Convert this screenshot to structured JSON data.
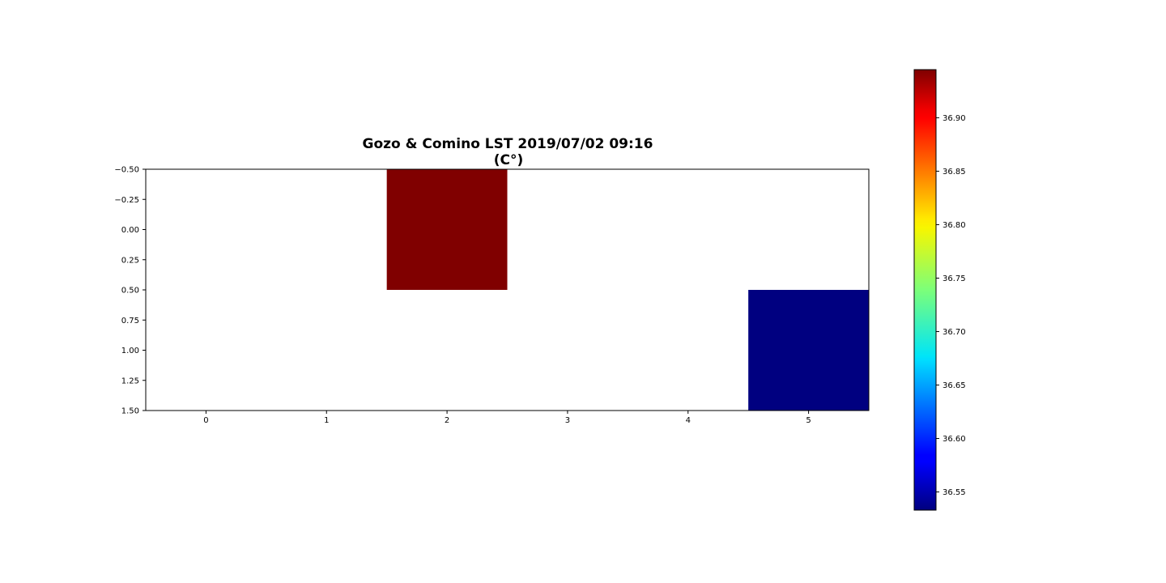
{
  "chart_data": {
    "type": "heatmap",
    "title": "Gozo & Comino LST 2019/07/02 09:16\n(C°)",
    "title_lines": [
      "Gozo & Comino LST 2019/07/02 09:16",
      "(C°)"
    ],
    "xlabel": "",
    "ylabel": "",
    "colormap": "jet",
    "xlim": [
      -0.5,
      5.5
    ],
    "ylim": [
      1.5,
      -0.5
    ],
    "x_ticks": [
      0,
      1,
      2,
      3,
      4,
      5
    ],
    "y_ticks": [
      -0.5,
      -0.25,
      0.0,
      0.25,
      0.5,
      0.75,
      1.0,
      1.25,
      1.5
    ],
    "x_tick_labels": [
      "0",
      "1",
      "2",
      "3",
      "4",
      "5"
    ],
    "y_tick_labels": [
      "−0.50",
      "−0.25",
      "0.00",
      "0.25",
      "0.50",
      "0.75",
      "1.00",
      "1.25",
      "1.50"
    ],
    "grid": false,
    "values": [
      [
        null,
        null,
        36.945,
        null,
        null,
        null
      ],
      [
        null,
        null,
        null,
        null,
        null,
        36.533
      ]
    ],
    "colorbar": {
      "range": [
        36.533,
        36.945
      ],
      "ticks": [
        36.55,
        36.6,
        36.65,
        36.7,
        36.75,
        36.8,
        36.85,
        36.9
      ],
      "tick_labels": [
        "36.55",
        "36.60",
        "36.65",
        "36.70",
        "36.75",
        "36.80",
        "36.85",
        "36.90"
      ],
      "placement": "right"
    }
  }
}
